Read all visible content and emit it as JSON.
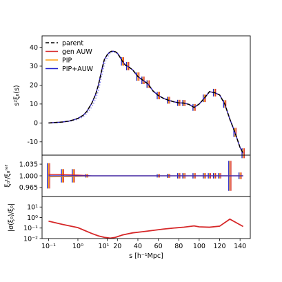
{
  "chart_data": {
    "type": "line",
    "x_axis": {
      "label": "s [h⁻¹Mpc]",
      "scale": "symlog-then-linear",
      "break_at": 10,
      "range": [
        0.06,
        150
      ],
      "ticks": [
        {
          "v": 0.1,
          "label": "10⁻¹"
        },
        {
          "v": 1,
          "label": "10⁰"
        },
        {
          "v": 10,
          "label": "10¹"
        },
        {
          "v": 20,
          "label": "20"
        },
        {
          "v": 40,
          "label": "40"
        },
        {
          "v": 60,
          "label": "60"
        },
        {
          "v": 80,
          "label": "80"
        },
        {
          "v": 100,
          "label": "100"
        },
        {
          "v": 120,
          "label": "120"
        },
        {
          "v": 140,
          "label": "140"
        }
      ]
    },
    "s": [
      0.1,
      0.2,
      0.3,
      0.5,
      0.7,
      1.0,
      1.5,
      2,
      3,
      4,
      5,
      6,
      7,
      8,
      10,
      12,
      14,
      16,
      18,
      20,
      22,
      25,
      28,
      30,
      35,
      40,
      45,
      50,
      55,
      60,
      65,
      70,
      75,
      80,
      85,
      90,
      95,
      100,
      105,
      110,
      115,
      120,
      125,
      130,
      135,
      140,
      143
    ],
    "panels": [
      {
        "id": "top",
        "ylabel": "s²ξ₀(s)",
        "ylim": [
          -17,
          46
        ],
        "yticks": [
          -10,
          0,
          10,
          20,
          30,
          40
        ],
        "legend": "upper-left",
        "series": [
          {
            "name": "parent",
            "color": "#000000",
            "style": "dashed",
            "values": [
              0.0,
              0.3,
              0.5,
              1.0,
              1.6,
              2.4,
              4.0,
              6.0,
              10.5,
              15.0,
              20.0,
              25.5,
              30.0,
              33.5,
              36.0,
              37.2,
              37.8,
              37.9,
              37.6,
              36.8,
              35.2,
              32.5,
              30.4,
              30.0,
              28.0,
              24.5,
              22.5,
              20.5,
              16.8,
              14.5,
              13.0,
              12.0,
              11.2,
              10.6,
              10.5,
              9.8,
              8.2,
              10.0,
              13.0,
              16.5,
              16.0,
              14.8,
              10.0,
              2.0,
              -5.0,
              -13.0,
              -16.0
            ]
          },
          {
            "name": "gen AUW",
            "color": "#d62728",
            "style": "solid",
            "values": [
              0.0,
              0.3,
              0.5,
              1.0,
              1.6,
              2.4,
              4.0,
              6.0,
              10.5,
              15.0,
              20.0,
              25.5,
              30.0,
              33.5,
              36.0,
              37.2,
              37.8,
              37.9,
              37.6,
              36.8,
              35.2,
              32.5,
              30.4,
              30.0,
              28.0,
              24.5,
              22.5,
              20.5,
              16.8,
              14.5,
              13.0,
              12.0,
              11.2,
              10.6,
              10.5,
              9.8,
              8.2,
              10.0,
              13.0,
              16.5,
              16.0,
              14.8,
              10.0,
              2.0,
              -5.0,
              -13.0,
              -16.0
            ]
          },
          {
            "name": "PIP",
            "color": "#ff9f0e",
            "style": "solid",
            "values": [
              0.0,
              0.3,
              0.5,
              1.0,
              1.6,
              2.4,
              4.0,
              6.0,
              10.5,
              15.0,
              20.0,
              25.5,
              30.0,
              33.5,
              36.0,
              37.2,
              37.8,
              37.9,
              37.6,
              36.8,
              35.2,
              32.5,
              30.4,
              30.0,
              28.0,
              24.5,
              22.5,
              20.5,
              16.8,
              14.5,
              13.0,
              12.0,
              11.2,
              10.6,
              10.5,
              9.8,
              8.2,
              10.0,
              13.0,
              16.5,
              16.0,
              14.8,
              10.0,
              2.0,
              -5.0,
              -13.0,
              -16.0
            ]
          },
          {
            "name": "PIP+AUW",
            "color": "#1f1fcc",
            "style": "solid",
            "values": [
              0.0,
              0.3,
              0.5,
              1.0,
              1.6,
              2.4,
              4.0,
              6.0,
              10.5,
              15.0,
              20.0,
              25.5,
              30.0,
              33.5,
              36.0,
              37.2,
              37.8,
              37.9,
              37.6,
              36.8,
              35.2,
              32.5,
              30.4,
              30.0,
              28.0,
              24.5,
              22.5,
              20.5,
              16.8,
              14.5,
              13.0,
              12.0,
              11.2,
              10.6,
              10.5,
              9.8,
              8.2,
              10.0,
              13.0,
              16.5,
              16.0,
              14.8,
              10.0,
              2.0,
              -5.0,
              -13.0,
              -16.0
            ]
          },
          {
            "name": "",
            "color": "#8080ee",
            "style": "dotted",
            "values": [
              0.0,
              0.25,
              0.4,
              0.8,
              1.3,
              1.9,
              3.2,
              4.8,
              8.5,
              12.5,
              17.0,
              22.5,
              27.0,
              31.0,
              34.5,
              36.3,
              37.3,
              37.6,
              37.3,
              36.6,
              35.0,
              32.4,
              30.3,
              30.0,
              28.0,
              24.5,
              22.5,
              20.5,
              16.8,
              14.5,
              13.0,
              12.0,
              11.2,
              10.6,
              10.5,
              9.8,
              8.2,
              10.0,
              13.0,
              16.5,
              16.0,
              14.8,
              10.0,
              2.0,
              -5.0,
              -13.0,
              -16.0
            ]
          }
        ],
        "errorbars": [
          {
            "s": 25,
            "e": 2.2
          },
          {
            "s": 30,
            "e": 2.2
          },
          {
            "s": 40,
            "e": 2.2
          },
          {
            "s": 45,
            "e": 2.0
          },
          {
            "s": 50,
            "e": 2.0
          },
          {
            "s": 60,
            "e": 2.0
          },
          {
            "s": 70,
            "e": 1.8
          },
          {
            "s": 80,
            "e": 1.6
          },
          {
            "s": 85,
            "e": 1.6
          },
          {
            "s": 95,
            "e": 1.8
          },
          {
            "s": 105,
            "e": 2.0
          },
          {
            "s": 115,
            "e": 2.0
          },
          {
            "s": 125,
            "e": 2.0
          },
          {
            "s": 135,
            "e": 2.4
          },
          {
            "s": 143,
            "e": 2.6
          }
        ]
      },
      {
        "id": "mid",
        "ylabel": "ξ₀ᵗ/ξ₀ʳᵉᶠ",
        "ylim": [
          0.938,
          1.062
        ],
        "yticks": [
          {
            "v": 1.035,
            "label": "1.035"
          },
          {
            "v": 1.0,
            "label": "1.000"
          },
          {
            "v": 0.965,
            "label": "0.965"
          }
        ],
        "series": [
          {
            "name": "gen AUW",
            "color": "#d62728",
            "values_near_one": true
          },
          {
            "name": "PIP",
            "color": "#ff9f0e",
            "values_near_one": true
          },
          {
            "name": "PIP+AUW",
            "color": "#1f1fcc",
            "values_near_one": true
          }
        ],
        "errorbars": [
          {
            "s": 0.1,
            "e": 0.038
          },
          {
            "s": 0.3,
            "e": 0.02
          },
          {
            "s": 0.7,
            "e": 0.02
          },
          {
            "s": 2,
            "e": 0.005
          },
          {
            "s": 60,
            "e": 0.005
          },
          {
            "s": 70,
            "e": 0.006
          },
          {
            "s": 80,
            "e": 0.008
          },
          {
            "s": 85,
            "e": 0.008
          },
          {
            "s": 95,
            "e": 0.008
          },
          {
            "s": 105,
            "e": 0.008
          },
          {
            "s": 110,
            "e": 0.008
          },
          {
            "s": 115,
            "e": 0.008
          },
          {
            "s": 120,
            "e": 0.008
          },
          {
            "s": 130,
            "e": 0.045
          },
          {
            "s": 140,
            "e": 0.01
          }
        ]
      },
      {
        "id": "bot",
        "ylabel": "|σ(ξ₀)/ξ₀|",
        "scale": "log",
        "ylim": [
          0.01,
          100
        ],
        "yticks": [
          {
            "v": 10,
            "label": "10¹"
          },
          {
            "v": 1,
            "label": "10⁰"
          },
          {
            "v": 0.1,
            "label": "10⁻¹"
          },
          {
            "v": 0.01,
            "label": "10⁻²"
          }
        ],
        "series": [
          {
            "name": "",
            "color": "#d62728",
            "points": [
              [
                0.1,
                0.45
              ],
              [
                0.3,
                0.22
              ],
              [
                1,
                0.11
              ],
              [
                3,
                0.03
              ],
              [
                5,
                0.018
              ],
              [
                8,
                0.013
              ],
              [
                10,
                0.012
              ],
              [
                13,
                0.011
              ],
              [
                18,
                0.013
              ],
              [
                25,
                0.022
              ],
              [
                35,
                0.035
              ],
              [
                45,
                0.045
              ],
              [
                55,
                0.06
              ],
              [
                65,
                0.08
              ],
              [
                75,
                0.1
              ],
              [
                85,
                0.12
              ],
              [
                95,
                0.16
              ],
              [
                100,
                0.13
              ],
              [
                110,
                0.12
              ],
              [
                120,
                0.15
              ],
              [
                130,
                0.7
              ],
              [
                143,
                0.14
              ]
            ]
          }
        ]
      }
    ]
  }
}
